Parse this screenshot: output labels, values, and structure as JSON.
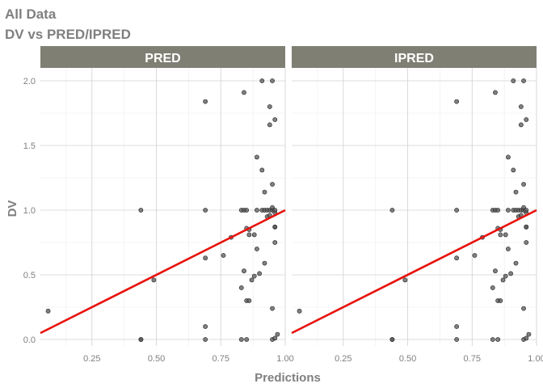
{
  "chart_data": {
    "type": "scatter",
    "title": "All Data",
    "subtitle": "DV vs PRED/IPRED",
    "xlabel": "Predictions",
    "ylabel": "DV",
    "xlim": [
      0.05,
      1.0
    ],
    "ylim": [
      -0.05,
      2.1
    ],
    "x_ticks": [
      0.25,
      0.5,
      0.75,
      1.0
    ],
    "x_tick_labels": [
      "0.25",
      "0.50",
      "0.75",
      "1.00"
    ],
    "y_ticks": [
      0.0,
      0.5,
      1.0,
      1.5,
      2.0
    ],
    "y_tick_labels": [
      "0.0",
      "0.5",
      "1.0",
      "1.5",
      "2.0"
    ],
    "grid": true,
    "facet_strip_color": "#7f7f74",
    "point_color": "#555555",
    "line_color": "#e8120c",
    "panels": [
      {
        "label": "PRED",
        "trend_line": {
          "intercept": 0.0,
          "slope": 1.0
        },
        "points": [
          [
            0.08,
            0.22
          ],
          [
            0.44,
            1.0
          ],
          [
            0.44,
            0.0
          ],
          [
            0.44,
            0.0
          ],
          [
            0.49,
            0.46
          ],
          [
            0.69,
            1.84
          ],
          [
            0.69,
            1.0
          ],
          [
            0.69,
            0.63
          ],
          [
            0.69,
            0.1
          ],
          [
            0.69,
            0.0
          ],
          [
            0.76,
            0.65
          ],
          [
            0.79,
            0.79
          ],
          [
            0.83,
            0.0
          ],
          [
            0.83,
            0.4
          ],
          [
            0.83,
            1.0
          ],
          [
            0.84,
            1.0
          ],
          [
            0.84,
            1.91
          ],
          [
            0.84,
            0.53
          ],
          [
            0.85,
            0.86
          ],
          [
            0.85,
            0.3
          ],
          [
            0.85,
            1.0
          ],
          [
            0.85,
            0.0
          ],
          [
            0.86,
            0.85
          ],
          [
            0.86,
            0.81
          ],
          [
            0.86,
            0.3
          ],
          [
            0.87,
            0.46
          ],
          [
            0.88,
            0.81
          ],
          [
            0.88,
            0.49
          ],
          [
            0.89,
            1.0
          ],
          [
            0.89,
            1.41
          ],
          [
            0.89,
            0.7
          ],
          [
            0.9,
            0.51
          ],
          [
            0.91,
            2.0
          ],
          [
            0.91,
            1.31
          ],
          [
            0.91,
            1.0
          ],
          [
            0.92,
            1.0
          ],
          [
            0.92,
            0.59
          ],
          [
            0.92,
            1.14
          ],
          [
            0.93,
            0.95
          ],
          [
            0.93,
            1.0
          ],
          [
            0.94,
            1.8
          ],
          [
            0.94,
            1.66
          ],
          [
            0.94,
            1.0
          ],
          [
            0.94,
            0.96
          ],
          [
            0.95,
            1.0
          ],
          [
            0.95,
            1.02
          ],
          [
            0.95,
            0.0
          ],
          [
            0.95,
            0.24
          ],
          [
            0.95,
            2.0
          ],
          [
            0.95,
            1.2
          ],
          [
            0.96,
            0.75
          ],
          [
            0.96,
            0.87
          ],
          [
            0.96,
            0.87
          ],
          [
            0.96,
            0.01
          ],
          [
            0.96,
            1.7
          ],
          [
            0.96,
            0.98
          ],
          [
            0.97,
            0.04
          ],
          [
            0.96,
            1.0
          ]
        ]
      },
      {
        "label": "IPRED",
        "trend_line": {
          "intercept": 0.0,
          "slope": 1.0
        },
        "points": [
          [
            0.08,
            0.22
          ],
          [
            0.44,
            1.0
          ],
          [
            0.44,
            0.0
          ],
          [
            0.44,
            0.0
          ],
          [
            0.49,
            0.46
          ],
          [
            0.69,
            1.84
          ],
          [
            0.69,
            1.0
          ],
          [
            0.69,
            0.63
          ],
          [
            0.69,
            0.1
          ],
          [
            0.69,
            0.0
          ],
          [
            0.76,
            0.65
          ],
          [
            0.79,
            0.79
          ],
          [
            0.83,
            0.0
          ],
          [
            0.83,
            0.4
          ],
          [
            0.83,
            1.0
          ],
          [
            0.84,
            1.0
          ],
          [
            0.84,
            1.91
          ],
          [
            0.84,
            0.53
          ],
          [
            0.85,
            0.86
          ],
          [
            0.85,
            0.3
          ],
          [
            0.85,
            1.0
          ],
          [
            0.85,
            0.0
          ],
          [
            0.86,
            0.85
          ],
          [
            0.86,
            0.81
          ],
          [
            0.86,
            0.3
          ],
          [
            0.87,
            0.46
          ],
          [
            0.88,
            0.81
          ],
          [
            0.88,
            0.49
          ],
          [
            0.89,
            1.0
          ],
          [
            0.89,
            1.41
          ],
          [
            0.89,
            0.7
          ],
          [
            0.9,
            0.51
          ],
          [
            0.91,
            2.0
          ],
          [
            0.91,
            1.31
          ],
          [
            0.91,
            1.0
          ],
          [
            0.92,
            1.0
          ],
          [
            0.92,
            0.59
          ],
          [
            0.92,
            1.14
          ],
          [
            0.93,
            0.95
          ],
          [
            0.93,
            1.0
          ],
          [
            0.94,
            1.8
          ],
          [
            0.94,
            1.66
          ],
          [
            0.94,
            1.0
          ],
          [
            0.94,
            0.96
          ],
          [
            0.95,
            1.0
          ],
          [
            0.95,
            1.02
          ],
          [
            0.95,
            0.0
          ],
          [
            0.95,
            0.24
          ],
          [
            0.95,
            2.0
          ],
          [
            0.95,
            1.2
          ],
          [
            0.96,
            0.75
          ],
          [
            0.96,
            0.87
          ],
          [
            0.96,
            0.87
          ],
          [
            0.96,
            0.01
          ],
          [
            0.96,
            1.7
          ],
          [
            0.96,
            0.98
          ],
          [
            0.97,
            0.04
          ],
          [
            0.96,
            1.0
          ]
        ]
      }
    ]
  }
}
